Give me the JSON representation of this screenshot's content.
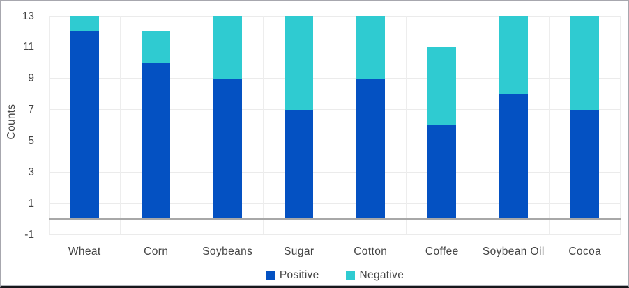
{
  "chart": {
    "y_axis_title": "Counts"
  },
  "chart_data": {
    "type": "bar",
    "stacked": true,
    "title": "",
    "xlabel": "",
    "ylabel": "Counts",
    "categories": [
      "Wheat",
      "Corn",
      "Soybeans",
      "Sugar",
      "Cotton",
      "Coffee",
      "Soybean Oil",
      "Cocoa"
    ],
    "series": [
      {
        "name": "Positive",
        "color": "#0451C2",
        "values": [
          12,
          10,
          9,
          7,
          9,
          6,
          8,
          7
        ]
      },
      {
        "name": "Negative",
        "color": "#2FCBD1",
        "values": [
          1,
          2,
          4,
          6,
          4,
          5,
          5,
          6
        ]
      }
    ],
    "stack_totals": [
      13,
      12,
      13,
      13,
      13,
      11,
      13,
      13
    ],
    "ylim": [
      -1,
      13
    ],
    "yticks": [
      13,
      11,
      9,
      7,
      5,
      3,
      1,
      -1
    ],
    "grid": true,
    "legend_position": "bottom",
    "colors": {
      "grid_line": "#EBEBEB",
      "zero_line": "#A8A8A8",
      "axis_text": "#444444"
    }
  }
}
